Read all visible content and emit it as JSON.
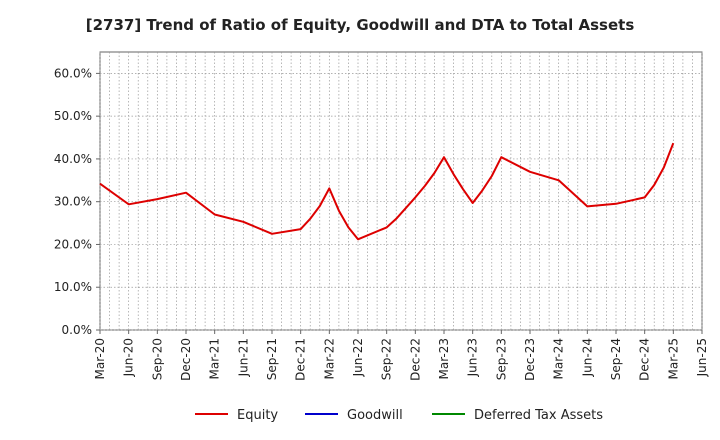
{
  "chart_data": {
    "type": "line",
    "title": "[2737]  Trend of Ratio of Equity, Goodwill and DTA to Total Assets",
    "xlabel": "",
    "ylabel": "",
    "ylim": [
      0,
      0.65
    ],
    "yticks": [
      {
        "value": 0.0,
        "label": "0.0%"
      },
      {
        "value": 0.1,
        "label": "10.0%"
      },
      {
        "value": 0.2,
        "label": "20.0%"
      },
      {
        "value": 0.3,
        "label": "30.0%"
      },
      {
        "value": 0.4,
        "label": "40.0%"
      },
      {
        "value": 0.5,
        "label": "50.0%"
      },
      {
        "value": 0.6,
        "label": "60.0%"
      }
    ],
    "xticks": [
      "Mar-20",
      "Jun-20",
      "Sep-20",
      "Dec-20",
      "Mar-21",
      "Jun-21",
      "Sep-21",
      "Dec-21",
      "Mar-22",
      "Jun-22",
      "Sep-22",
      "Dec-22",
      "Mar-23",
      "Jun-23",
      "Sep-23",
      "Dec-23",
      "Mar-24",
      "Jun-24",
      "Sep-24",
      "Dec-24",
      "Mar-25",
      "Jun-25"
    ],
    "grid": true,
    "legend_position": "bottom",
    "series": [
      {
        "name": "Equity",
        "color": "#dd0000",
        "x": [
          "Mar-20",
          "Jun-20",
          "Sep-20",
          "Dec-20",
          "Mar-21",
          "Jun-21",
          "Sep-21",
          "Dec-21",
          "Jan-22",
          "Feb-22",
          "Mar-22",
          "Apr-22",
          "May-22",
          "Jun-22",
          "Sep-22",
          "Oct-22",
          "Nov-22",
          "Dec-22",
          "Jan-23",
          "Feb-23",
          "Mar-23",
          "Apr-23",
          "May-23",
          "Jun-23",
          "Jul-23",
          "Aug-23",
          "Sep-23",
          "Dec-23",
          "Mar-24",
          "Jun-24",
          "Sep-24",
          "Dec-24",
          "Jan-25",
          "Feb-25",
          "Mar-25"
        ],
        "values": [
          0.342,
          0.294,
          0.306,
          0.321,
          0.27,
          0.253,
          0.225,
          0.236,
          0.26,
          0.29,
          0.331,
          0.279,
          0.24,
          0.212,
          0.24,
          0.26,
          0.285,
          0.31,
          0.337,
          0.367,
          0.404,
          0.364,
          0.329,
          0.297,
          0.326,
          0.36,
          0.404,
          0.37,
          0.35,
          0.289,
          0.295,
          0.31,
          0.339,
          0.38,
          0.437
        ]
      },
      {
        "name": "Goodwill",
        "color": "#0000cc",
        "x": [],
        "values": []
      },
      {
        "name": "Deferred Tax Assets",
        "color": "#008800",
        "x": [],
        "values": []
      }
    ]
  }
}
